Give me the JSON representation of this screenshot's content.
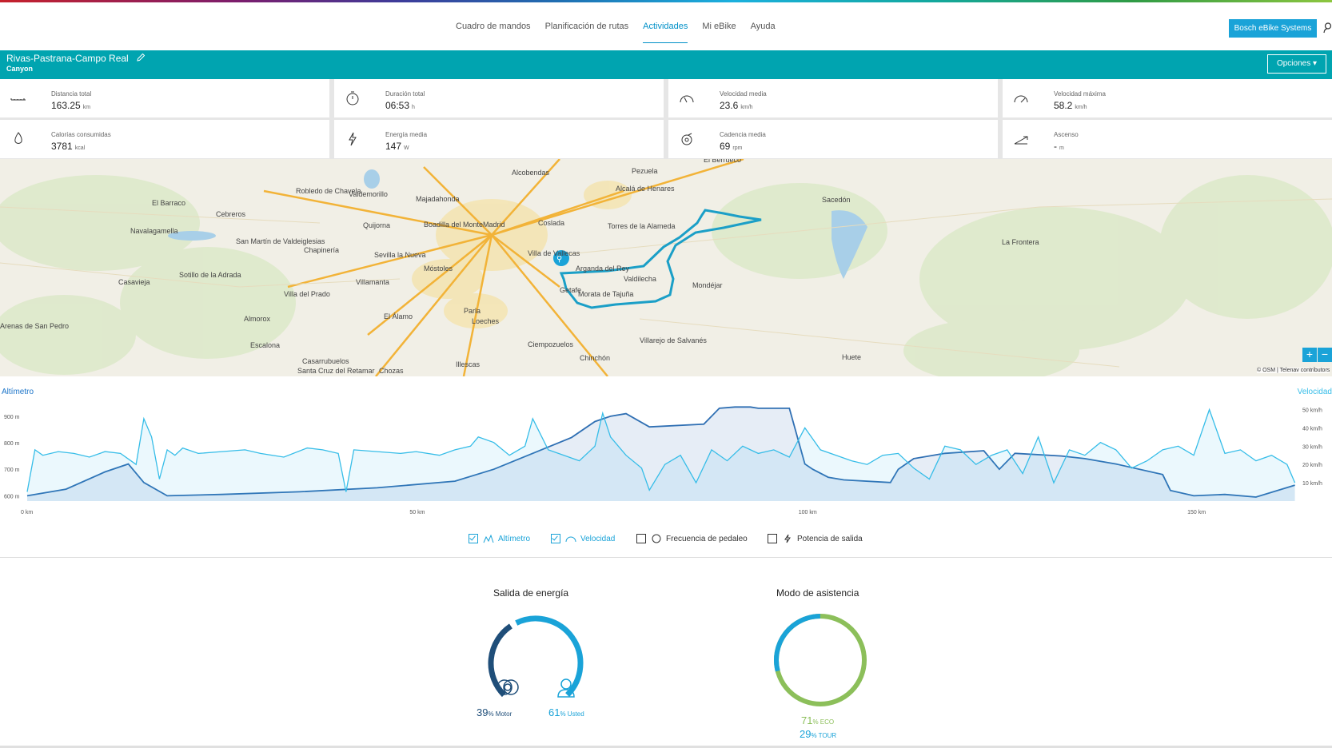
{
  "nav": {
    "items": [
      "Cuadro de mandos",
      "Planificación de rutas",
      "Actividades",
      "Mi eBike",
      "Ayuda"
    ],
    "active": "Actividades",
    "brand_button": "Bosch eBike Systems"
  },
  "activity": {
    "title": "Rivas-Pastrana-Campo Real",
    "subtitle": "Canyon",
    "options_label": "Opciones"
  },
  "stats": [
    {
      "label": "Distancia total",
      "value": "163.25",
      "unit": "km",
      "icon": "ruler-icon"
    },
    {
      "label": "Duración total",
      "value": "06:53",
      "unit": "h",
      "icon": "stopwatch-icon"
    },
    {
      "label": "Velocidad media",
      "value": "23.6",
      "unit": "km/h",
      "icon": "speedometer-icon"
    },
    {
      "label": "Velocidad máxima",
      "value": "58.2",
      "unit": "km/h",
      "icon": "speedometer-max-icon"
    },
    {
      "label": "Calorías consumidas",
      "value": "3781",
      "unit": "kcal",
      "icon": "flame-icon"
    },
    {
      "label": "Energía media",
      "value": "147",
      "unit": "W",
      "icon": "lightning-icon"
    },
    {
      "label": "Cadencia media",
      "value": "69",
      "unit": "rpm",
      "icon": "cadence-icon"
    },
    {
      "label": "Ascenso",
      "value": "-",
      "unit": "m",
      "icon": "ascent-icon"
    }
  ],
  "map": {
    "labels": [
      "Alcobendas",
      "Alcalá de Henares",
      "Majadahonda",
      "Madrid",
      "Coslada",
      "Boadilla del Monte",
      "Torres de la Alameda",
      "Móstoles",
      "Arganda del Rey",
      "Valdilecha",
      "Parla",
      "Morata de Tajuña",
      "Villarejo de Salvanés",
      "Chinchón",
      "Ciempozuelos",
      "Illescas",
      "Casarrubuelos",
      "Santa Cruz del Retamar",
      "Chozas",
      "Escalona",
      "Almorox",
      "Navalagamella",
      "El Barraco",
      "Cebreros",
      "San Martín de Valdeiglesias",
      "Sotillo de la Adrada",
      "Casavieja",
      "Arenas de San Pedro",
      "Villa del Prado",
      "Chapinería",
      "Sevilla la Nueva",
      "Villamanta",
      "El Álamo",
      "Quijorna",
      "Valdemorillo",
      "Robledo de Chavela",
      "Pezuela",
      "Mondéjar",
      "Sacedón",
      "La Frontera",
      "Huete",
      "El Berrueco",
      "Loeches",
      "Villa de Vallecas",
      "Getafe"
    ],
    "attribution": "© OSM | Telenav contributors",
    "zoom_in": "+",
    "zoom_out": "−"
  },
  "chart": {
    "left_label": "Altímetro",
    "right_label": "Velocidad"
  },
  "chart_data": {
    "type": "area",
    "x_unit": "km",
    "x_ticks": [
      "0 km",
      "50 km",
      "100 km",
      "150 km"
    ],
    "xlim": [
      0,
      163.25
    ],
    "y_left_ticks": [
      "600 m",
      "700 m",
      "800 m",
      "900 m"
    ],
    "y_left_lim": [
      580,
      960
    ],
    "y_right_ticks": [
      "10 km/h",
      "20 km/h",
      "30 km/h",
      "40 km/h",
      "50 km/h"
    ],
    "y_right_lim": [
      0,
      55
    ],
    "series": [
      {
        "name": "Altímetro",
        "axis": "left",
        "color": "#2f6fb3",
        "x": [
          0,
          5,
          10,
          13,
          15,
          18,
          25,
          35,
          45,
          55,
          60,
          65,
          70,
          73,
          75,
          77,
          80,
          87,
          89,
          91,
          93,
          94,
          96,
          98,
          100,
          101,
          103,
          105,
          111,
          112,
          114,
          118,
          123,
          125,
          127,
          133,
          136,
          140,
          146,
          147,
          150,
          154,
          158,
          163
        ],
        "y": [
          600,
          625,
          690,
          720,
          650,
          600,
          605,
          615,
          630,
          655,
          700,
          760,
          820,
          880,
          900,
          910,
          860,
          870,
          930,
          935,
          935,
          930,
          930,
          930,
          720,
          700,
          670,
          660,
          650,
          700,
          740,
          760,
          770,
          700,
          760,
          750,
          740,
          720,
          680,
          620,
          600,
          605,
          595,
          640
        ]
      },
      {
        "name": "Velocidad",
        "axis": "right",
        "color": "#36bde8",
        "x": [
          0,
          1,
          2,
          4,
          6,
          8,
          10,
          12,
          14,
          15,
          16,
          17,
          18,
          19,
          20,
          22,
          25,
          28,
          30,
          33,
          36,
          38,
          40,
          41,
          42,
          45,
          48,
          50,
          53,
          55,
          57,
          58,
          60,
          62,
          64,
          65,
          67,
          69,
          71,
          73,
          74,
          75,
          77,
          79,
          80,
          82,
          84,
          86,
          88,
          90,
          92,
          94,
          96,
          98,
          100,
          102,
          104,
          106,
          108,
          110,
          112,
          114,
          116,
          118,
          120,
          122,
          124,
          126,
          128,
          130,
          132,
          134,
          136,
          138,
          140,
          142,
          144,
          146,
          148,
          150,
          152,
          154,
          156,
          158,
          160,
          162,
          163
        ],
        "y": [
          5,
          28,
          25,
          27,
          26,
          24,
          27,
          26,
          20,
          45,
          35,
          12,
          28,
          25,
          29,
          26,
          27,
          28,
          26,
          24,
          29,
          28,
          26,
          5,
          28,
          27,
          26,
          27,
          25,
          28,
          30,
          35,
          32,
          25,
          30,
          45,
          28,
          25,
          22,
          30,
          48,
          35,
          25,
          18,
          6,
          20,
          25,
          10,
          28,
          22,
          30,
          26,
          28,
          24,
          40,
          28,
          25,
          22,
          20,
          25,
          26,
          18,
          12,
          30,
          28,
          20,
          25,
          28,
          15,
          35,
          10,
          28,
          25,
          32,
          28,
          18,
          22,
          28,
          30,
          25,
          50,
          26,
          28,
          22,
          25,
          20,
          10
        ]
      }
    ]
  },
  "toggles": [
    {
      "label": "Altímetro",
      "checked": true,
      "icon": "altitude-icon"
    },
    {
      "label": "Velocidad",
      "checked": true,
      "icon": "speedometer-icon"
    },
    {
      "label": "Frecuencia de pedaleo",
      "checked": false,
      "icon": "cadence-icon"
    },
    {
      "label": "Potencia de salida",
      "checked": false,
      "icon": "lightning-icon"
    }
  ],
  "energy": {
    "title": "Salida de energía",
    "motor_pct": 39,
    "user_pct": 61,
    "motor_value": "39",
    "motor_suffix": "% Motor",
    "user_value": "61",
    "user_suffix": "% Usted",
    "motor_color": "#1f4e79",
    "user_color": "#1aa3d8"
  },
  "assist": {
    "title": "Modo de asistencia",
    "eco_pct": 71,
    "tour_pct": 29,
    "eco_value": "71",
    "eco_suffix": "% ECO",
    "tour_value": "29",
    "tour_suffix": "% TOUR",
    "eco_color": "#8cbf5a",
    "tour_color": "#1aa3d8"
  }
}
